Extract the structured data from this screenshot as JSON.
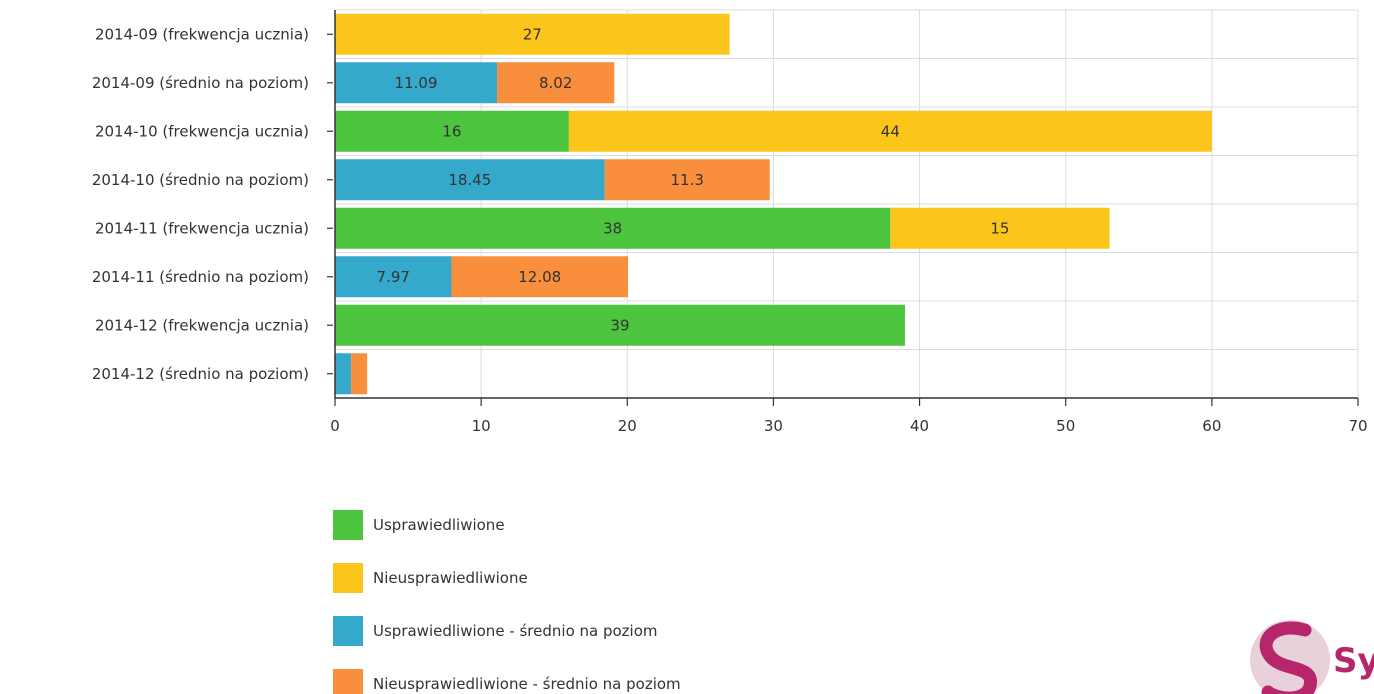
{
  "chart_data": {
    "type": "bar",
    "orientation": "horizontal",
    "stacked": true,
    "categories": [
      "2014-09 (frekwencja ucznia)",
      "2014-09 (średnio na poziom)",
      "2014-10 (frekwencja ucznia)",
      "2014-10 (średnio na poziom)",
      "2014-11 (frekwencja ucznia)",
      "2014-11 (średnio na poziom)",
      "2014-12 (frekwencja ucznia)",
      "2014-12 (średnio na poziom)"
    ],
    "series": [
      {
        "name": "Usprawiedliwione",
        "color": "#4cc43d",
        "values": [
          0,
          0,
          16,
          0,
          38,
          0,
          39,
          0
        ],
        "labels": [
          "",
          "",
          "16",
          "",
          "38",
          "",
          "39",
          ""
        ]
      },
      {
        "name": "Nieusprawiedliwione",
        "color": "#fcc51a",
        "values": [
          27,
          0,
          44,
          0,
          15,
          0,
          0,
          0
        ],
        "labels": [
          "27",
          "",
          "44",
          "",
          "15",
          "",
          "",
          ""
        ]
      },
      {
        "name": "Usprawiedliwione - średnio na poziom",
        "color": "#35a9cc",
        "values": [
          0,
          11.09,
          0,
          18.45,
          0,
          7.97,
          0,
          1.1
        ],
        "labels": [
          "",
          "11.09",
          "",
          "18.45",
          "",
          "7.97",
          "",
          ""
        ]
      },
      {
        "name": "Nieusprawiedliwione - średnio na poziom",
        "color": "#f98f3d",
        "values": [
          0,
          8.02,
          0,
          11.3,
          0,
          12.08,
          0,
          1.1
        ],
        "labels": [
          "",
          "8.02",
          "",
          "11.3",
          "",
          "12.08",
          "",
          ""
        ]
      }
    ],
    "xlim": [
      0,
      70
    ],
    "xticks": [
      0,
      10,
      20,
      30,
      40,
      50,
      60,
      70
    ],
    "grid": true,
    "legend_position": "bottom-left",
    "title": "",
    "xlabel": "",
    "ylabel": ""
  },
  "logo": {
    "text": "Sy",
    "colors": [
      "#b7256b",
      "#7c1f4c"
    ]
  }
}
